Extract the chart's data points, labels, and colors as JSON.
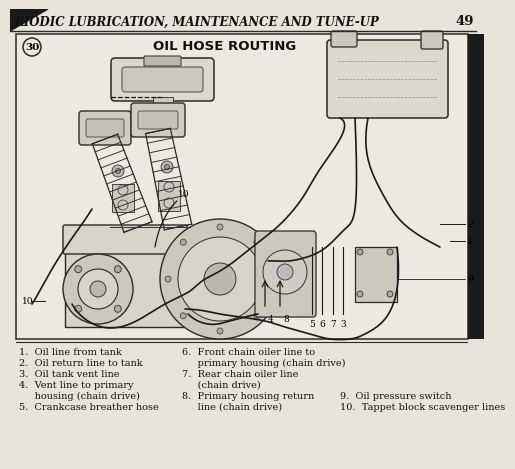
{
  "page_header": "RIODIC LUBRICATION, MAINTENANCE AND TUNE-UP",
  "page_number": "49",
  "diagram_title": "OIL HOSE ROUTING",
  "figure_number": "30",
  "background_color": "#f0ece4",
  "text_color": "#1a1a1a",
  "legend_col1": [
    "1.  Oil line from tank",
    "2.  Oil return line to tank",
    "3.  Oil tank vent line",
    "4.  Vent line to primary",
    "     housing (chain drive)",
    "5.  Crankcase breather hose"
  ],
  "legend_col2": [
    "6.  Front chain oiler line to",
    "     primary housing (chain drive)",
    "7.  Rear chain oiler line",
    "     (chain drive)",
    "8.  Primary housing return",
    "     line (chain drive)"
  ],
  "legend_col3": [
    "9.  Oil pressure switch",
    "10.  Tappet block scavenger lines"
  ],
  "header_font_size": 8.5,
  "legend_font_size": 7.0,
  "title_font_size": 9.5,
  "fig_num_font_size": 7.5
}
